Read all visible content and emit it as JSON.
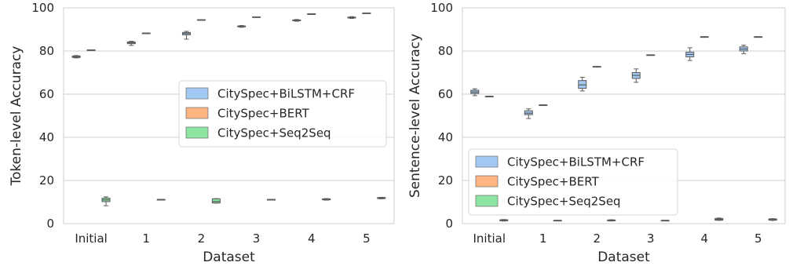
{
  "chart_data": [
    {
      "type": "box",
      "xlabel": "Dataset",
      "ylabel": "Token-level Accuracy",
      "ylim": [
        0,
        100
      ],
      "yticks": [
        0,
        20,
        40,
        60,
        80,
        100
      ],
      "categories": [
        "Initial",
        "1",
        "2",
        "3",
        "4",
        "5"
      ],
      "grid": true,
      "legend_position": "center-right",
      "series": [
        {
          "name": "CitySpec+BiLSTM+CRF",
          "color": "#a1c9f4",
          "boxes": [
            {
              "min": 76.8,
              "q1": 77.0,
              "median": 77.3,
              "q3": 77.7,
              "max": 77.9
            },
            {
              "min": 82.6,
              "q1": 83.4,
              "median": 83.8,
              "q3": 84.2,
              "max": 84.5
            },
            {
              "min": 85.5,
              "q1": 87.5,
              "median": 88.1,
              "q3": 88.6,
              "max": 89.1
            },
            {
              "min": 91.0,
              "q1": 91.2,
              "median": 91.4,
              "q3": 91.6,
              "max": 91.8
            },
            {
              "min": 93.8,
              "q1": 94.0,
              "median": 94.2,
              "q3": 94.4,
              "max": 94.6
            },
            {
              "min": 95.1,
              "q1": 95.3,
              "median": 95.5,
              "q3": 95.7,
              "max": 95.9
            }
          ]
        },
        {
          "name": "CitySpec+BERT",
          "color": "#ffb482",
          "boxes": [
            {
              "min": 80.5,
              "q1": 80.5,
              "median": 80.5,
              "q3": 80.5,
              "max": 80.5
            },
            {
              "min": 88.3,
              "q1": 88.3,
              "median": 88.3,
              "q3": 88.3,
              "max": 88.3
            },
            {
              "min": 94.5,
              "q1": 94.5,
              "median": 94.5,
              "q3": 94.5,
              "max": 94.5
            },
            {
              "min": 95.8,
              "q1": 95.8,
              "median": 95.8,
              "q3": 95.8,
              "max": 95.8
            },
            {
              "min": 97.2,
              "q1": 97.2,
              "median": 97.2,
              "q3": 97.2,
              "max": 97.2
            },
            {
              "min": 97.6,
              "q1": 97.6,
              "median": 97.6,
              "q3": 97.6,
              "max": 97.6
            }
          ]
        },
        {
          "name": "CitySpec+Seq2Seq",
          "color": "#8de5a1",
          "boxes": [
            {
              "min": 8.3,
              "q1": 10.2,
              "median": 11.0,
              "q3": 11.8,
              "max": 12.4
            },
            {
              "min": 11.2,
              "q1": 11.2,
              "median": 11.2,
              "q3": 11.2,
              "max": 11.2
            },
            {
              "min": 9.5,
              "q1": 9.6,
              "median": 10.3,
              "q3": 11.5,
              "max": 11.6
            },
            {
              "min": 11.2,
              "q1": 11.2,
              "median": 11.2,
              "q3": 11.2,
              "max": 11.2
            },
            {
              "min": 10.9,
              "q1": 11.0,
              "median": 11.2,
              "q3": 11.5,
              "max": 11.6
            },
            {
              "min": 11.5,
              "q1": 11.6,
              "median": 11.8,
              "q3": 12.1,
              "max": 12.2
            }
          ]
        }
      ]
    },
    {
      "type": "box",
      "xlabel": "Dataset",
      "ylabel": "Sentence-level Accuracy",
      "ylim": [
        0,
        100
      ],
      "yticks": [
        0,
        20,
        40,
        60,
        80,
        100
      ],
      "categories": [
        "Initial",
        "1",
        "2",
        "3",
        "4",
        "5"
      ],
      "grid": true,
      "legend_position": "lower-left",
      "series": [
        {
          "name": "CitySpec+BiLSTM+CRF",
          "color": "#a1c9f4",
          "boxes": [
            {
              "min": 59.3,
              "q1": 60.3,
              "median": 61.0,
              "q3": 61.8,
              "max": 62.5
            },
            {
              "min": 48.7,
              "q1": 50.5,
              "median": 51.2,
              "q3": 52.3,
              "max": 53.2
            },
            {
              "min": 61.5,
              "q1": 62.7,
              "median": 64.3,
              "q3": 66.3,
              "max": 67.8
            },
            {
              "min": 65.5,
              "q1": 67.3,
              "median": 68.7,
              "q3": 70.0,
              "max": 71.7
            },
            {
              "min": 75.6,
              "q1": 77.3,
              "median": 78.4,
              "q3": 79.5,
              "max": 81.5
            },
            {
              "min": 78.8,
              "q1": 80.0,
              "median": 80.9,
              "q3": 81.9,
              "max": 82.7
            }
          ]
        },
        {
          "name": "CitySpec+BERT",
          "color": "#ffb482",
          "boxes": [
            {
              "min": 59.0,
              "q1": 59.0,
              "median": 59.0,
              "q3": 59.0,
              "max": 59.0
            },
            {
              "min": 55.0,
              "q1": 55.0,
              "median": 55.0,
              "q3": 55.0,
              "max": 55.0
            },
            {
              "min": 72.8,
              "q1": 72.8,
              "median": 72.8,
              "q3": 72.8,
              "max": 72.8
            },
            {
              "min": 78.2,
              "q1": 78.2,
              "median": 78.2,
              "q3": 78.2,
              "max": 78.2
            },
            {
              "min": 86.6,
              "q1": 86.6,
              "median": 86.6,
              "q3": 86.6,
              "max": 86.6
            },
            {
              "min": 86.6,
              "q1": 86.6,
              "median": 86.6,
              "q3": 86.6,
              "max": 86.6
            }
          ]
        },
        {
          "name": "CitySpec+Seq2Seq",
          "color": "#8de5a1",
          "boxes": [
            {
              "min": 1.2,
              "q1": 1.3,
              "median": 1.5,
              "q3": 1.8,
              "max": 1.9
            },
            {
              "min": 1.5,
              "q1": 1.5,
              "median": 1.5,
              "q3": 1.5,
              "max": 1.5
            },
            {
              "min": 1.2,
              "q1": 1.3,
              "median": 1.5,
              "q3": 1.7,
              "max": 1.8
            },
            {
              "min": 1.5,
              "q1": 1.5,
              "median": 1.5,
              "q3": 1.5,
              "max": 1.5
            },
            {
              "min": 1.5,
              "q1": 1.6,
              "median": 2.0,
              "q3": 2.4,
              "max": 2.6
            },
            {
              "min": 1.5,
              "q1": 1.6,
              "median": 1.9,
              "q3": 2.2,
              "max": 2.3
            }
          ]
        }
      ]
    }
  ]
}
